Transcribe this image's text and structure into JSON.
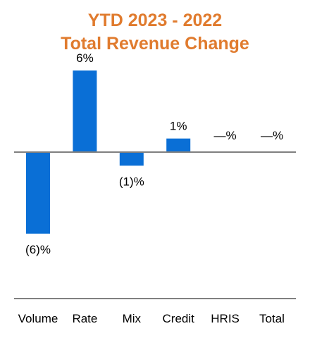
{
  "colors": {
    "title": "#E07B2E",
    "bar": "#0A6FD6",
    "axis": "#808080"
  },
  "chart_data": {
    "type": "bar",
    "title": [
      "YTD 2023 - 2022",
      "Total Revenue Change"
    ],
    "categories": [
      "Volume",
      "Rate",
      "Mix",
      "Credit",
      "HRIS",
      "Total"
    ],
    "values": [
      -6,
      6,
      -1,
      1,
      0,
      0
    ],
    "data_labels": [
      "(6)%",
      "6%",
      "(1)%",
      "1%",
      "—%",
      "—%"
    ],
    "xlabel": "",
    "ylabel": "",
    "unit": "%",
    "ylim": [
      -11,
      4
    ],
    "grid": false,
    "legend": "none"
  }
}
